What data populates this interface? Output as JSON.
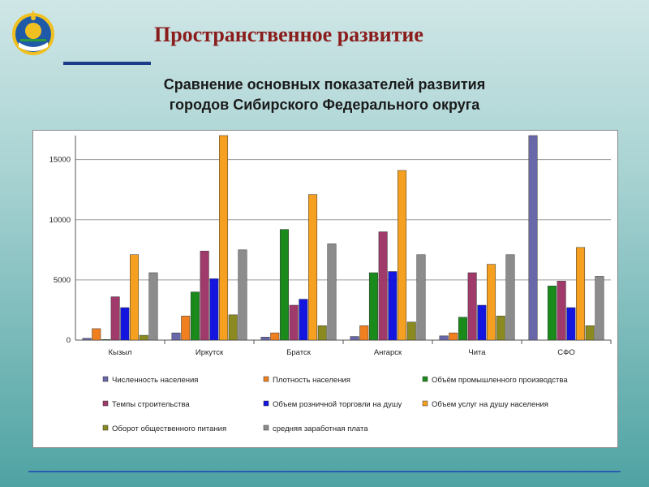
{
  "header": {
    "title": "Пространственное развитие",
    "subtitle_line1": "Сравнение основных показателей развития",
    "subtitle_line2": "городов Сибирского Федерального округа"
  },
  "colors": {
    "title": "#8b1c1c",
    "accent": "#1e3a8a"
  },
  "chart_data": {
    "type": "bar",
    "categories": [
      "Кызыл",
      "Иркутск",
      "Братск",
      "Ангарск",
      "Чита",
      "СФО"
    ],
    "ylim": [
      0,
      17000
    ],
    "yticks": [
      0,
      5000,
      10000,
      15000
    ],
    "grid": true,
    "legend_position": "bottom",
    "series": [
      {
        "name": "Численность населения",
        "color": "#6868a8",
        "values": [
          150,
          600,
          250,
          300,
          350,
          17000
        ]
      },
      {
        "name": "Плотность населения",
        "color": "#f07f20",
        "values": [
          950,
          2000,
          600,
          1200,
          600,
          0
        ]
      },
      {
        "name": "Объём промышленного производства",
        "color": "#1a8a1a",
        "values": [
          50,
          4000,
          9200,
          5600,
          1900,
          4500
        ]
      },
      {
        "name": "Темпы строительства",
        "color": "#a03a6a",
        "values": [
          3600,
          7400,
          2900,
          9000,
          5600,
          4900
        ]
      },
      {
        "name": "Объем розничной торговли на душу",
        "color": "#1515e0",
        "values": [
          2700,
          5100,
          3400,
          5700,
          2900,
          2700
        ]
      },
      {
        "name": "Объем услуг на душу населения",
        "color": "#f5a020",
        "values": [
          7100,
          17000,
          12100,
          14100,
          6300,
          7700
        ]
      },
      {
        "name": "Оборот общественного питания",
        "color": "#8a8a20",
        "values": [
          400,
          2100,
          1200,
          1500,
          2000,
          1200
        ]
      },
      {
        "name": "средняя заработная плата",
        "color": "#8c8c8c",
        "values": [
          5600,
          7500,
          8000,
          7100,
          7100,
          5300
        ]
      }
    ]
  }
}
